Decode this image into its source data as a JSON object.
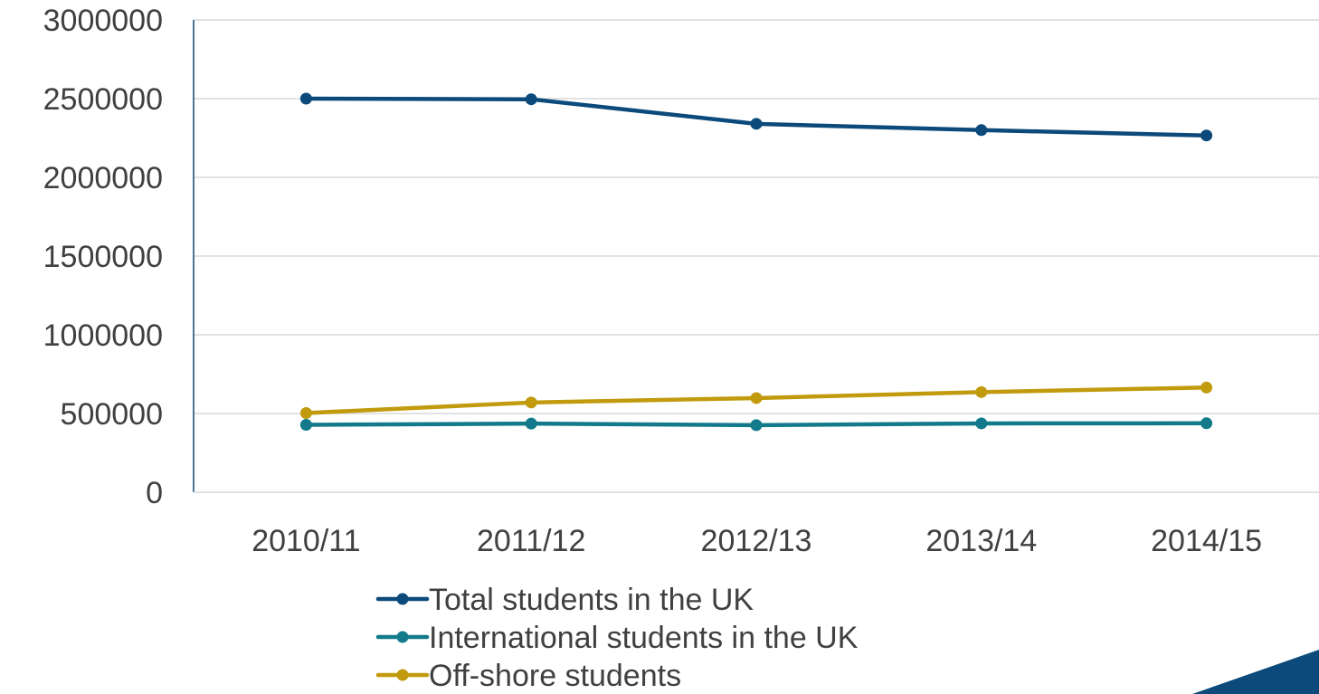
{
  "chart_data": {
    "type": "line",
    "categories": [
      "2010/11",
      "2011/12",
      "2012/13",
      "2013/14",
      "2014/15"
    ],
    "ylim": [
      0,
      3000000
    ],
    "yticks": [
      0,
      500000,
      1000000,
      1500000,
      2000000,
      2500000,
      3000000
    ],
    "ytick_labels": [
      "0",
      "500000",
      "1000000",
      "1500000",
      "2000000",
      "2500000",
      "3000000"
    ],
    "grid": true,
    "legend_position": "bottom",
    "series": [
      {
        "name": "Total students in the UK",
        "color": "#0b4a7a",
        "values": [
          2500000,
          2496000,
          2340000,
          2300000,
          2266000
        ]
      },
      {
        "name": "International students in the UK",
        "color": "#127a8a",
        "values": [
          428000,
          436000,
          426000,
          437000,
          438000
        ]
      },
      {
        "name": "Off-shore students",
        "color": "#c19a0e",
        "values": [
          503000,
          570000,
          598000,
          636000,
          665000
        ]
      }
    ]
  },
  "decoration": {
    "corner_accent_color": "#0b4a7a"
  }
}
